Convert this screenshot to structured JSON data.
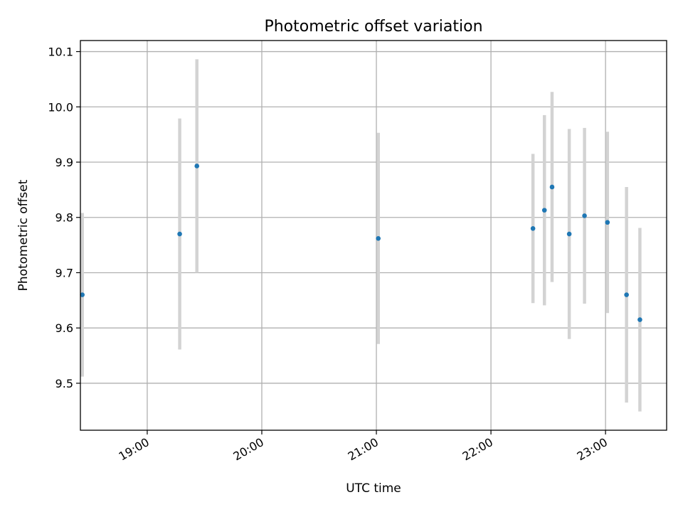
{
  "chart_data": {
    "type": "scatter",
    "title": "Photometric offset variation",
    "xlabel": "UTC time",
    "ylabel": "Photometric offset",
    "x_axis_type": "time",
    "xlim": [
      "18:25",
      "23:32"
    ],
    "ylim": [
      9.415,
      10.12
    ],
    "grid": true,
    "legend": "none",
    "x_ticks": [
      "19:00",
      "20:00",
      "21:00",
      "22:00",
      "23:00"
    ],
    "y_ticks": [
      9.5,
      9.6,
      9.7,
      9.8,
      9.9,
      10.0,
      10.1
    ],
    "y_tick_labels": [
      "9.5",
      "9.6",
      "9.7",
      "9.8",
      "9.9",
      "10.0",
      "10.1"
    ],
    "colors": {
      "point": "#1f77b4",
      "errorbar": "#d3d3d3",
      "grid": "#b0b0b0"
    },
    "series": [
      {
        "points": [
          {
            "x": "18:26",
            "y": 9.66,
            "err": 0.148
          },
          {
            "x": "19:17",
            "y": 9.77,
            "err": 0.209
          },
          {
            "x": "19:26",
            "y": 9.893,
            "err": 0.193
          },
          {
            "x": "21:01",
            "y": 9.762,
            "err": 0.191
          },
          {
            "x": "22:22",
            "y": 9.78,
            "err": 0.135
          },
          {
            "x": "22:28",
            "y": 9.813,
            "err": 0.172
          },
          {
            "x": "22:32",
            "y": 9.855,
            "err": 0.172
          },
          {
            "x": "22:41",
            "y": 9.77,
            "err": 0.19
          },
          {
            "x": "22:49",
            "y": 9.803,
            "err": 0.159
          },
          {
            "x": "23:01",
            "y": 9.791,
            "err": 0.164
          },
          {
            "x": "23:11",
            "y": 9.66,
            "err": 0.195
          },
          {
            "x": "23:18",
            "y": 9.615,
            "err": 0.166
          }
        ]
      }
    ]
  }
}
